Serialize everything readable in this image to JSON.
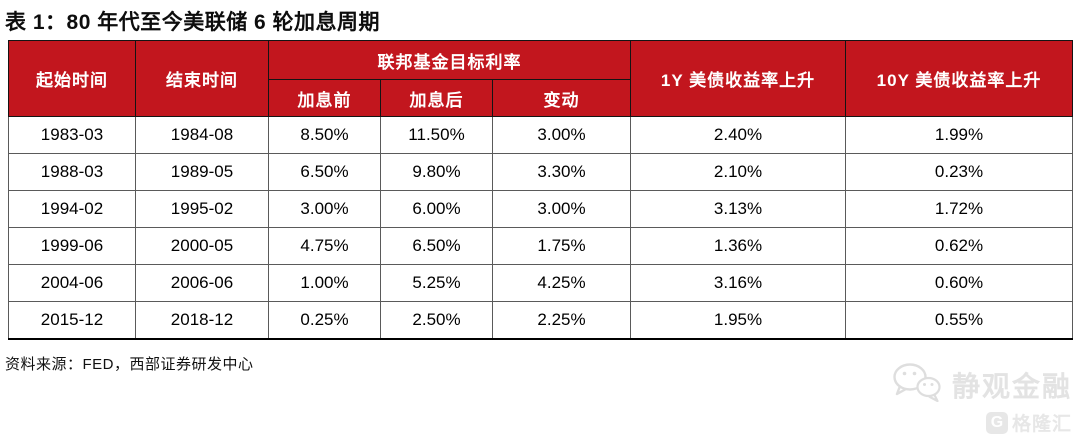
{
  "title": "表 1：80 年代至今美联储 6 轮加息周期",
  "table": {
    "headers": {
      "start_time": "起始时间",
      "end_time": "结束时间",
      "fed_funds_group": "联邦基金目标利率",
      "before_hike": "加息前",
      "after_hike": "加息后",
      "change": "变动",
      "us1y": "1Y 美债收益率上升",
      "us10y": "10Y 美债收益率上升"
    },
    "rows": [
      [
        "1983-03",
        "1984-08",
        "8.50%",
        "11.50%",
        "3.00%",
        "2.40%",
        "1.99%"
      ],
      [
        "1988-03",
        "1989-05",
        "6.50%",
        "9.80%",
        "3.30%",
        "2.10%",
        "0.23%"
      ],
      [
        "1994-02",
        "1995-02",
        "3.00%",
        "6.00%",
        "3.00%",
        "3.13%",
        "1.72%"
      ],
      [
        "1999-06",
        "2000-05",
        "4.75%",
        "6.50%",
        "1.75%",
        "1.36%",
        "0.62%"
      ],
      [
        "2004-06",
        "2006-06",
        "1.00%",
        "5.25%",
        "4.25%",
        "3.16%",
        "0.60%"
      ],
      [
        "2015-12",
        "2018-12",
        "0.25%",
        "2.50%",
        "2.25%",
        "1.95%",
        "0.55%"
      ]
    ]
  },
  "source_note": "资料来源：FED，西部证券研发中心",
  "watermarks": {
    "wechat_name": "静观金融",
    "platform_name": "格隆汇",
    "platform_badge_letter": "G"
  },
  "colors": {
    "header_red": "#c2161e",
    "watermark_gray": "#e3e3e3",
    "border_dark": "#141414",
    "border_body": "#5a5a5a"
  }
}
